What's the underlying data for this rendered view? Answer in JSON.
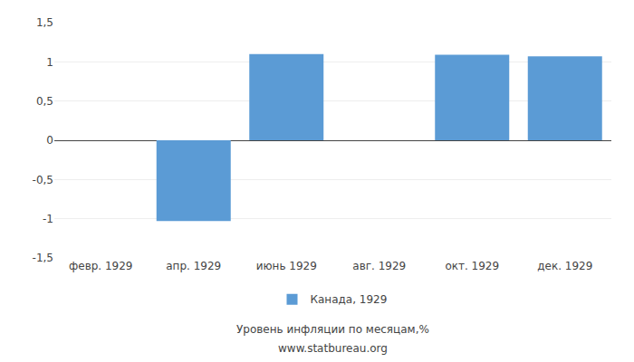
{
  "chart_data": {
    "type": "bar",
    "categories": [
      "февр. 1929",
      "апр. 1929",
      "июнь 1929",
      "авг. 1929",
      "окт. 1929",
      "дек. 1929"
    ],
    "series": [
      {
        "name": "Канада, 1929",
        "color": "#5b9bd5",
        "values": [
          0.0,
          -1.03,
          1.1,
          0.0,
          1.09,
          1.07
        ]
      }
    ],
    "ylim": [
      -1.5,
      1.5
    ],
    "yticks": [
      {
        "value": -1.5,
        "label": "-1,5"
      },
      -1,
      {
        "value": -0.5,
        "label": "-0,5"
      },
      0,
      {
        "value": 0.5,
        "label": "0,5"
      },
      1,
      {
        "value": 1.5,
        "label": "1,5"
      }
    ],
    "grid": true,
    "legend": "bottom",
    "annotations": [
      "Уровень инфляции по месяцам,%",
      "www.statbureau.org"
    ]
  }
}
